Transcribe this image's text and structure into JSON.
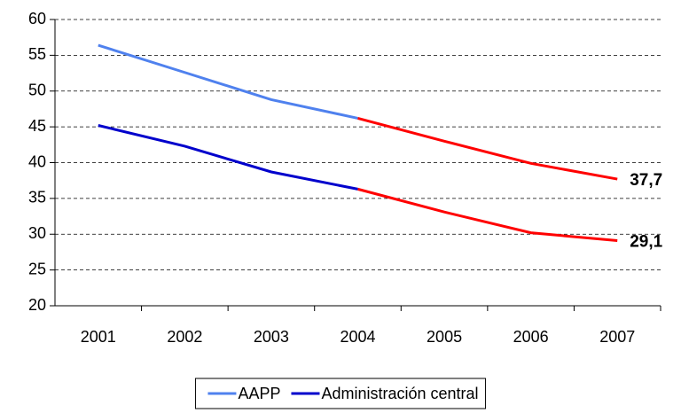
{
  "chart_data": {
    "type": "line",
    "categories": [
      "2001",
      "2002",
      "2003",
      "2004",
      "2005",
      "2006",
      "2007"
    ],
    "series": [
      {
        "name": "AAPP",
        "color": "#4f81ee",
        "values": [
          56.4,
          52.6,
          48.8,
          46.2,
          43.0,
          39.9,
          37.7
        ],
        "value_labels": [
          null,
          null,
          null,
          null,
          null,
          null,
          "37,7"
        ]
      },
      {
        "name": "Administración central",
        "color": "#0000cc",
        "values": [
          45.2,
          42.3,
          38.7,
          36.3,
          33.1,
          30.2,
          29.1
        ],
        "value_labels": [
          null,
          null,
          null,
          null,
          null,
          null,
          "29,1"
        ]
      }
    ],
    "highlight": {
      "color": "#ff0000",
      "from": "2004"
    },
    "ylim": [
      20,
      60
    ],
    "yticks": [
      20,
      25,
      30,
      35,
      40,
      45,
      50,
      55,
      60
    ],
    "grid": true,
    "legend": "bottom"
  }
}
